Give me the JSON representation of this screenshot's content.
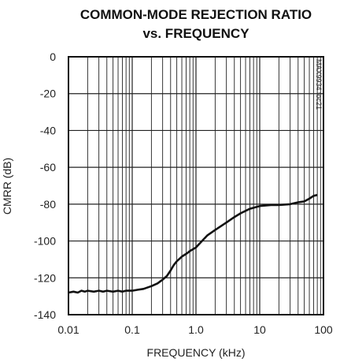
{
  "chart_data": {
    "type": "line",
    "title": "COMMON-MODE REJECTION RATIO",
    "subtitle": "vs. FREQUENCY",
    "xlabel": "FREQUENCY (kHz)",
    "ylabel": "CMRR (dB)",
    "x_scale": "log",
    "xlim": [
      0.01,
      100
    ],
    "ylim": [
      -140,
      0
    ],
    "x_ticks": [
      {
        "value": 0.01,
        "label": "0.01"
      },
      {
        "value": 0.1,
        "label": "0.1"
      },
      {
        "value": 1,
        "label": "1.0"
      },
      {
        "value": 10,
        "label": "10"
      },
      {
        "value": 100,
        "label": "100"
      }
    ],
    "y_ticks": [
      {
        "value": 0,
        "label": "0"
      },
      {
        "value": -20,
        "label": "-20"
      },
      {
        "value": -40,
        "label": "-40"
      },
      {
        "value": -60,
        "label": "-60"
      },
      {
        "value": -80,
        "label": "-80"
      },
      {
        "value": -100,
        "label": "-100"
      },
      {
        "value": -120,
        "label": "-120"
      },
      {
        "value": -140,
        "label": "-140"
      }
    ],
    "grid": true,
    "annotation": "MAX9934 toc21",
    "series": [
      {
        "x": [
          0.01,
          0.012,
          0.014,
          0.016,
          0.018,
          0.02,
          0.025,
          0.03,
          0.035,
          0.04,
          0.05,
          0.06,
          0.07,
          0.08,
          0.1,
          0.12,
          0.15,
          0.2,
          0.25,
          0.3,
          0.35,
          0.4,
          0.45,
          0.5,
          0.6,
          0.7,
          0.8,
          1.0,
          1.5,
          2,
          3,
          4,
          5,
          7,
          10,
          15,
          20,
          30,
          40,
          50,
          60,
          70,
          80
        ],
        "values": [
          -128,
          -127.5,
          -128,
          -127,
          -127.5,
          -127,
          -127.5,
          -127,
          -127.5,
          -127,
          -127.5,
          -127,
          -127.5,
          -127,
          -127,
          -126.5,
          -126,
          -124.5,
          -123,
          -121,
          -119,
          -116,
          -113,
          -111,
          -108.5,
          -107,
          -105.5,
          -103.5,
          -97,
          -94,
          -90,
          -87,
          -85,
          -82.5,
          -81,
          -80.5,
          -80.5,
          -80,
          -79,
          -78.5,
          -77,
          -75.5,
          -75
        ]
      }
    ]
  }
}
